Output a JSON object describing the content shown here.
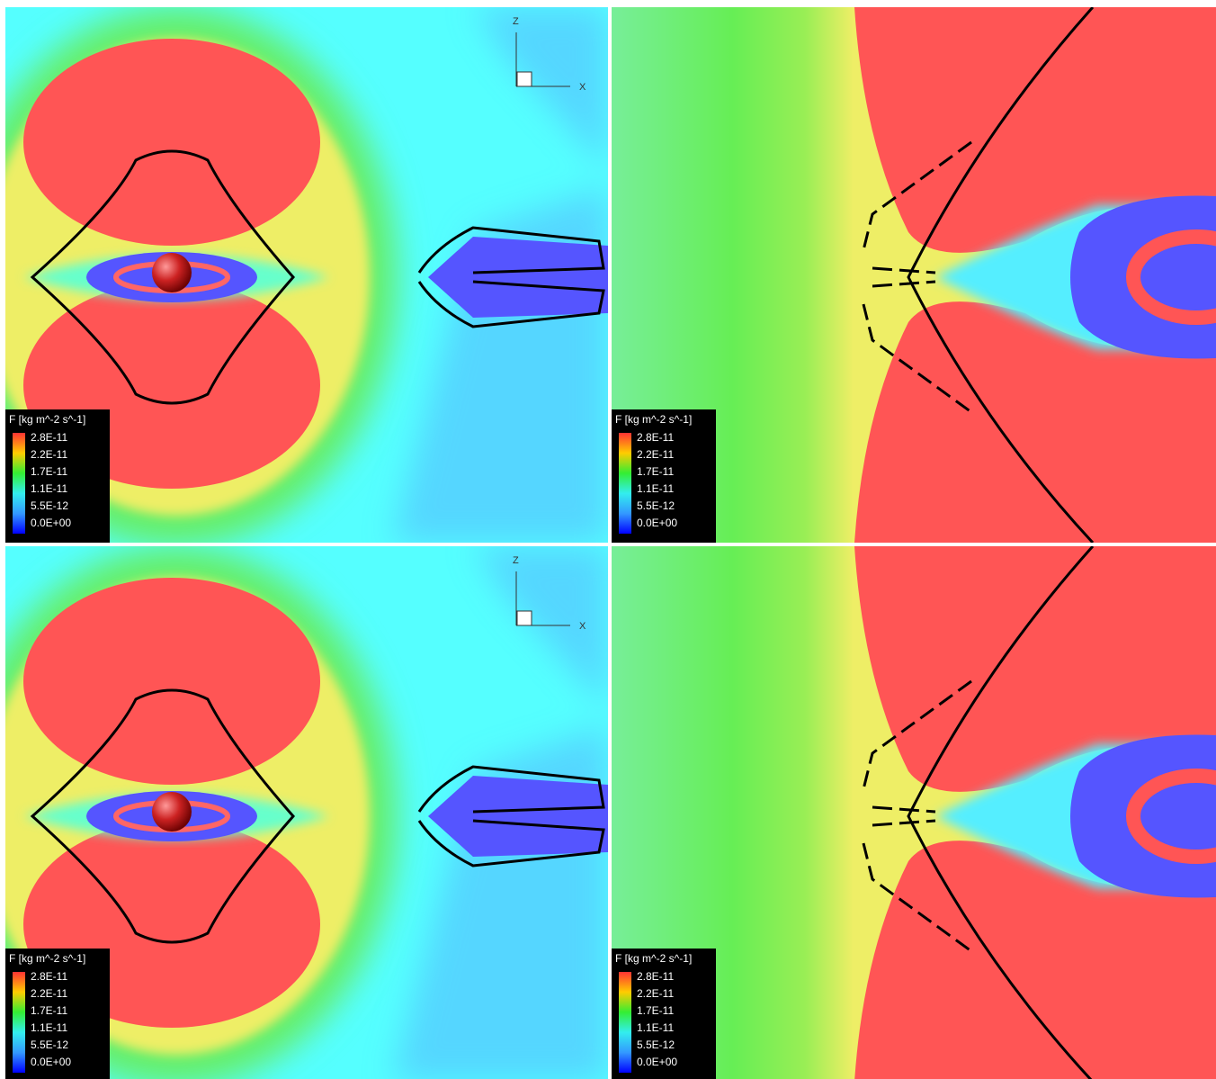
{
  "panels": [
    {
      "legend": {
        "title": "F [kg m^-2 s^-1]",
        "labels": [
          "2.8E-11",
          "2.2E-11",
          "1.7E-11",
          "1.1E-11",
          "5.5E-12",
          "0.0E+00"
        ]
      },
      "axes": {
        "z": "Z",
        "x": "X"
      }
    },
    {
      "legend": {
        "title": "F [kg m^-2 s^-1]",
        "labels": [
          "2.8E-11",
          "2.2E-11",
          "1.7E-11",
          "1.1E-11",
          "5.5E-12",
          "0.0E+00"
        ]
      }
    },
    {
      "legend": {
        "title": "F [kg m^-2 s^-1]",
        "labels": [
          "2.8E-11",
          "2.2E-11",
          "1.7E-11",
          "1.1E-11",
          "5.5E-12",
          "0.0E+00"
        ]
      },
      "axes": {
        "z": "Z",
        "x": "X"
      }
    },
    {
      "legend": {
        "title": "F [kg m^-2 s^-1]",
        "labels": [
          "2.8E-11",
          "2.2E-11",
          "1.7E-11",
          "1.1E-11",
          "5.5E-12",
          "0.0E+00"
        ]
      }
    }
  ]
}
